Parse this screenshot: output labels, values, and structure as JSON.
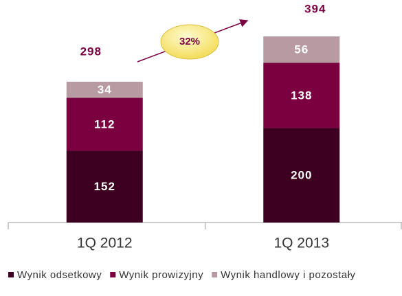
{
  "chart_data": {
    "type": "bar",
    "stacked": true,
    "categories": [
      "1Q 2012",
      "1Q 2013"
    ],
    "series": [
      {
        "name": "Wynik odsetkowy",
        "color": "#3d0020",
        "values": [
          152,
          200
        ]
      },
      {
        "name": "Wynik prowizyjny",
        "color": "#7a0040",
        "values": [
          112,
          138
        ]
      },
      {
        "name": "Wynik handlowy i pozostały",
        "color": "#b89aa3",
        "values": [
          34,
          56
        ]
      }
    ],
    "totals": [
      298,
      394
    ],
    "growth_label": "32%",
    "legend": "bottom"
  }
}
